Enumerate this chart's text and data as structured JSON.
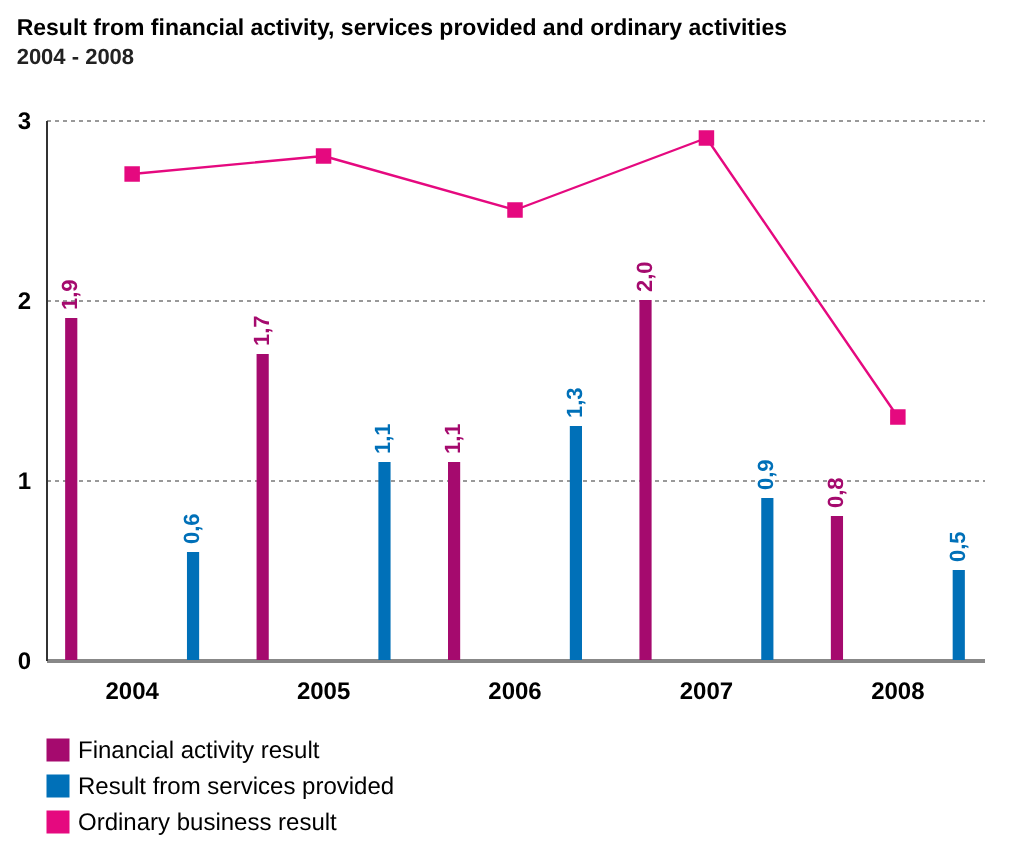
{
  "chart_data": {
    "type": "bar",
    "title": "Result from financial activity, services provided and ordinary activities",
    "subtitle": "2004 - 2008",
    "categories": [
      "2004",
      "2005",
      "2006",
      "2007",
      "2008"
    ],
    "series": [
      {
        "name": "Financial activity result",
        "color": "#a50a6e",
        "values": [
          1.9,
          1.7,
          1.1,
          2.0,
          0.8
        ],
        "value_labels": [
          "1,9",
          "1,7",
          "1,1",
          "2,0",
          "0,8"
        ]
      },
      {
        "name": "Result from services provided",
        "color": "#0070b8",
        "values": [
          0.6,
          1.1,
          1.3,
          0.9,
          0.5
        ],
        "value_labels": [
          "0,6",
          "1,1",
          "1,3",
          "0,9",
          "0,5"
        ]
      },
      {
        "name": "Ordinary business result",
        "type": "line",
        "color": "#e5097f",
        "values": [
          2.7,
          2.8,
          2.5,
          2.9,
          1.35
        ],
        "marker": "square",
        "line_style": "solid"
      }
    ],
    "ylim": [
      0,
      3
    ],
    "yticks": [
      0,
      1,
      2,
      3
    ],
    "grid": true,
    "legend": "bottom"
  }
}
